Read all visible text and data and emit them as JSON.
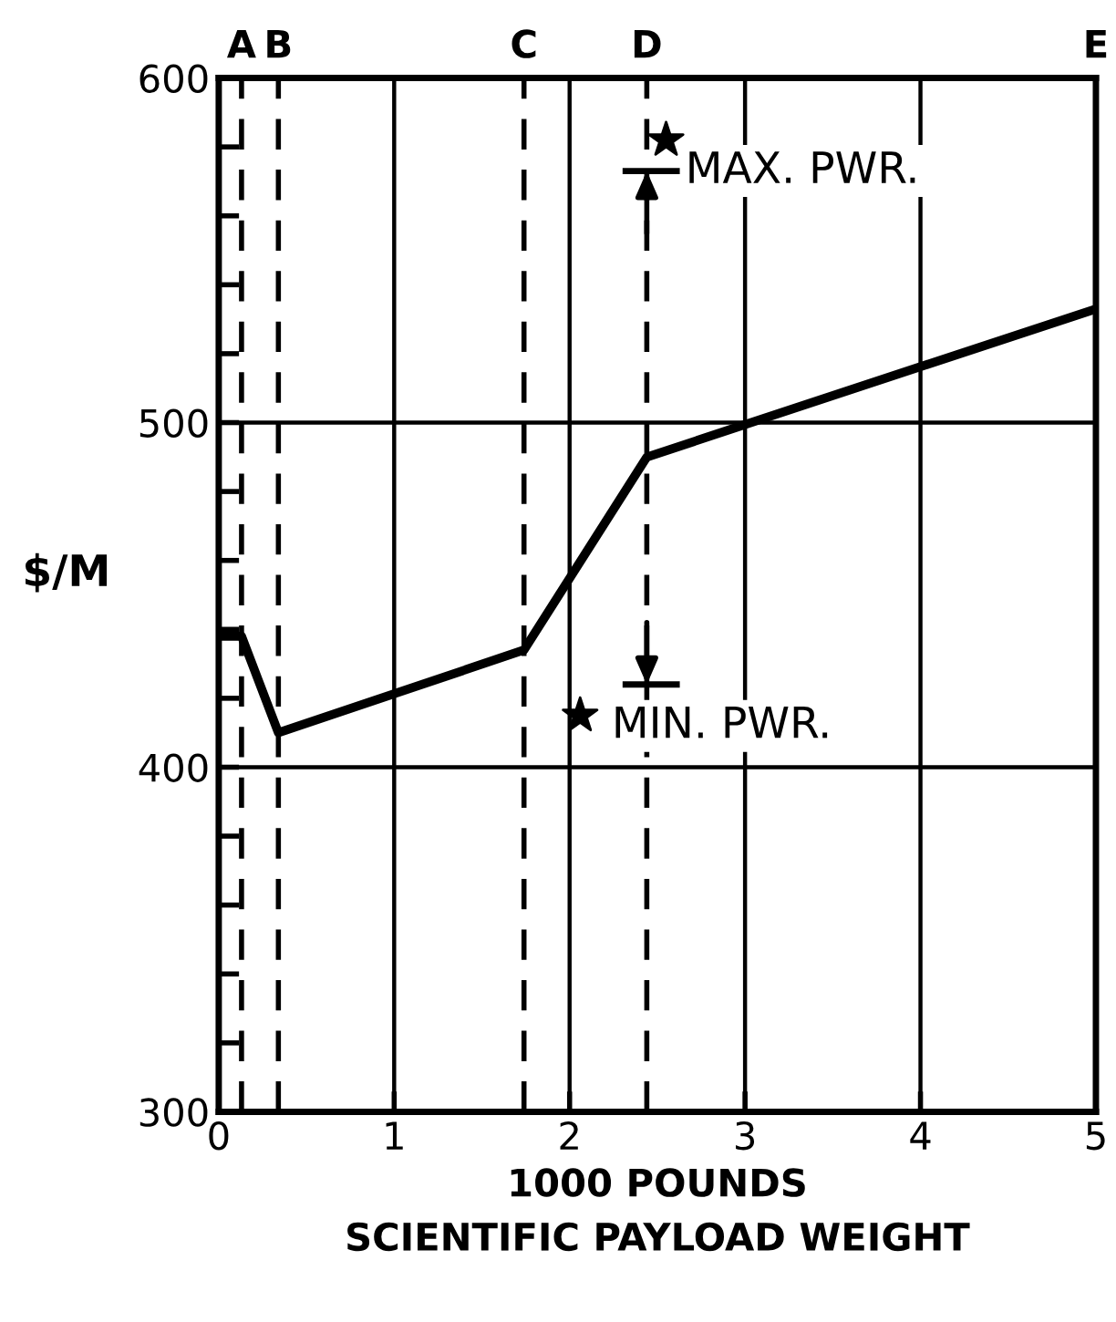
{
  "chart_data": {
    "type": "line",
    "xlabel": "1000 POUNDS\nSCIENTIFIC PAYLOAD WEIGHT",
    "ylabel": "$/M",
    "series": [
      {
        "color": "#000000",
        "x": [
          0,
          0.13,
          0.34,
          1.74,
          2.44,
          5
        ],
        "values": [
          438,
          438,
          410,
          434,
          490,
          533
        ]
      },
      {
        "type": "scatter",
        "color": "#000000",
        "marker": "star",
        "x": [
          2.55,
          2.06
        ],
        "values": [
          582,
          415
        ]
      }
    ],
    "xlim": [
      0,
      5
    ],
    "ylim": [
      300,
      600
    ],
    "xticks": [
      0,
      1,
      2,
      3,
      4,
      5
    ],
    "yticks": [
      300,
      {
        "value": 320,
        "label": null
      },
      {
        "value": 340,
        "label": null
      },
      {
        "value": 360,
        "label": null
      },
      {
        "value": 380,
        "label": null
      },
      400,
      {
        "value": 420,
        "label": null
      },
      {
        "value": 440,
        "label": null
      },
      {
        "value": 460,
        "label": null
      },
      {
        "value": 480,
        "label": null
      },
      500,
      {
        "value": 520,
        "label": null
      },
      {
        "value": 540,
        "label": null
      },
      {
        "value": 560,
        "label": null
      },
      {
        "value": 580,
        "label": null
      },
      600
    ],
    "grid": true,
    "ref_lines": [
      {
        "axis": "x",
        "value": 0.13,
        "label": "A",
        "line_style": "dashed",
        "color": "#000000"
      },
      {
        "axis": "x",
        "value": 0.34,
        "label": "B",
        "line_style": "dashed",
        "color": "#000000"
      },
      {
        "axis": "x",
        "value": 1.74,
        "label": "C",
        "line_style": "dashed",
        "color": "#000000"
      },
      {
        "axis": "x",
        "value": 2.44,
        "label": "D",
        "line_style": "dashed",
        "color": "#000000"
      },
      {
        "axis": "x",
        "value": 5,
        "label": "E",
        "line_style": "solid",
        "color": "#000000"
      }
    ],
    "annotations": [
      {
        "text": "MAX. PWR.",
        "x": 2.44,
        "y": 573
      },
      {
        "text": "MIN. PWR.",
        "x": 2.44,
        "y": 424
      }
    ]
  }
}
